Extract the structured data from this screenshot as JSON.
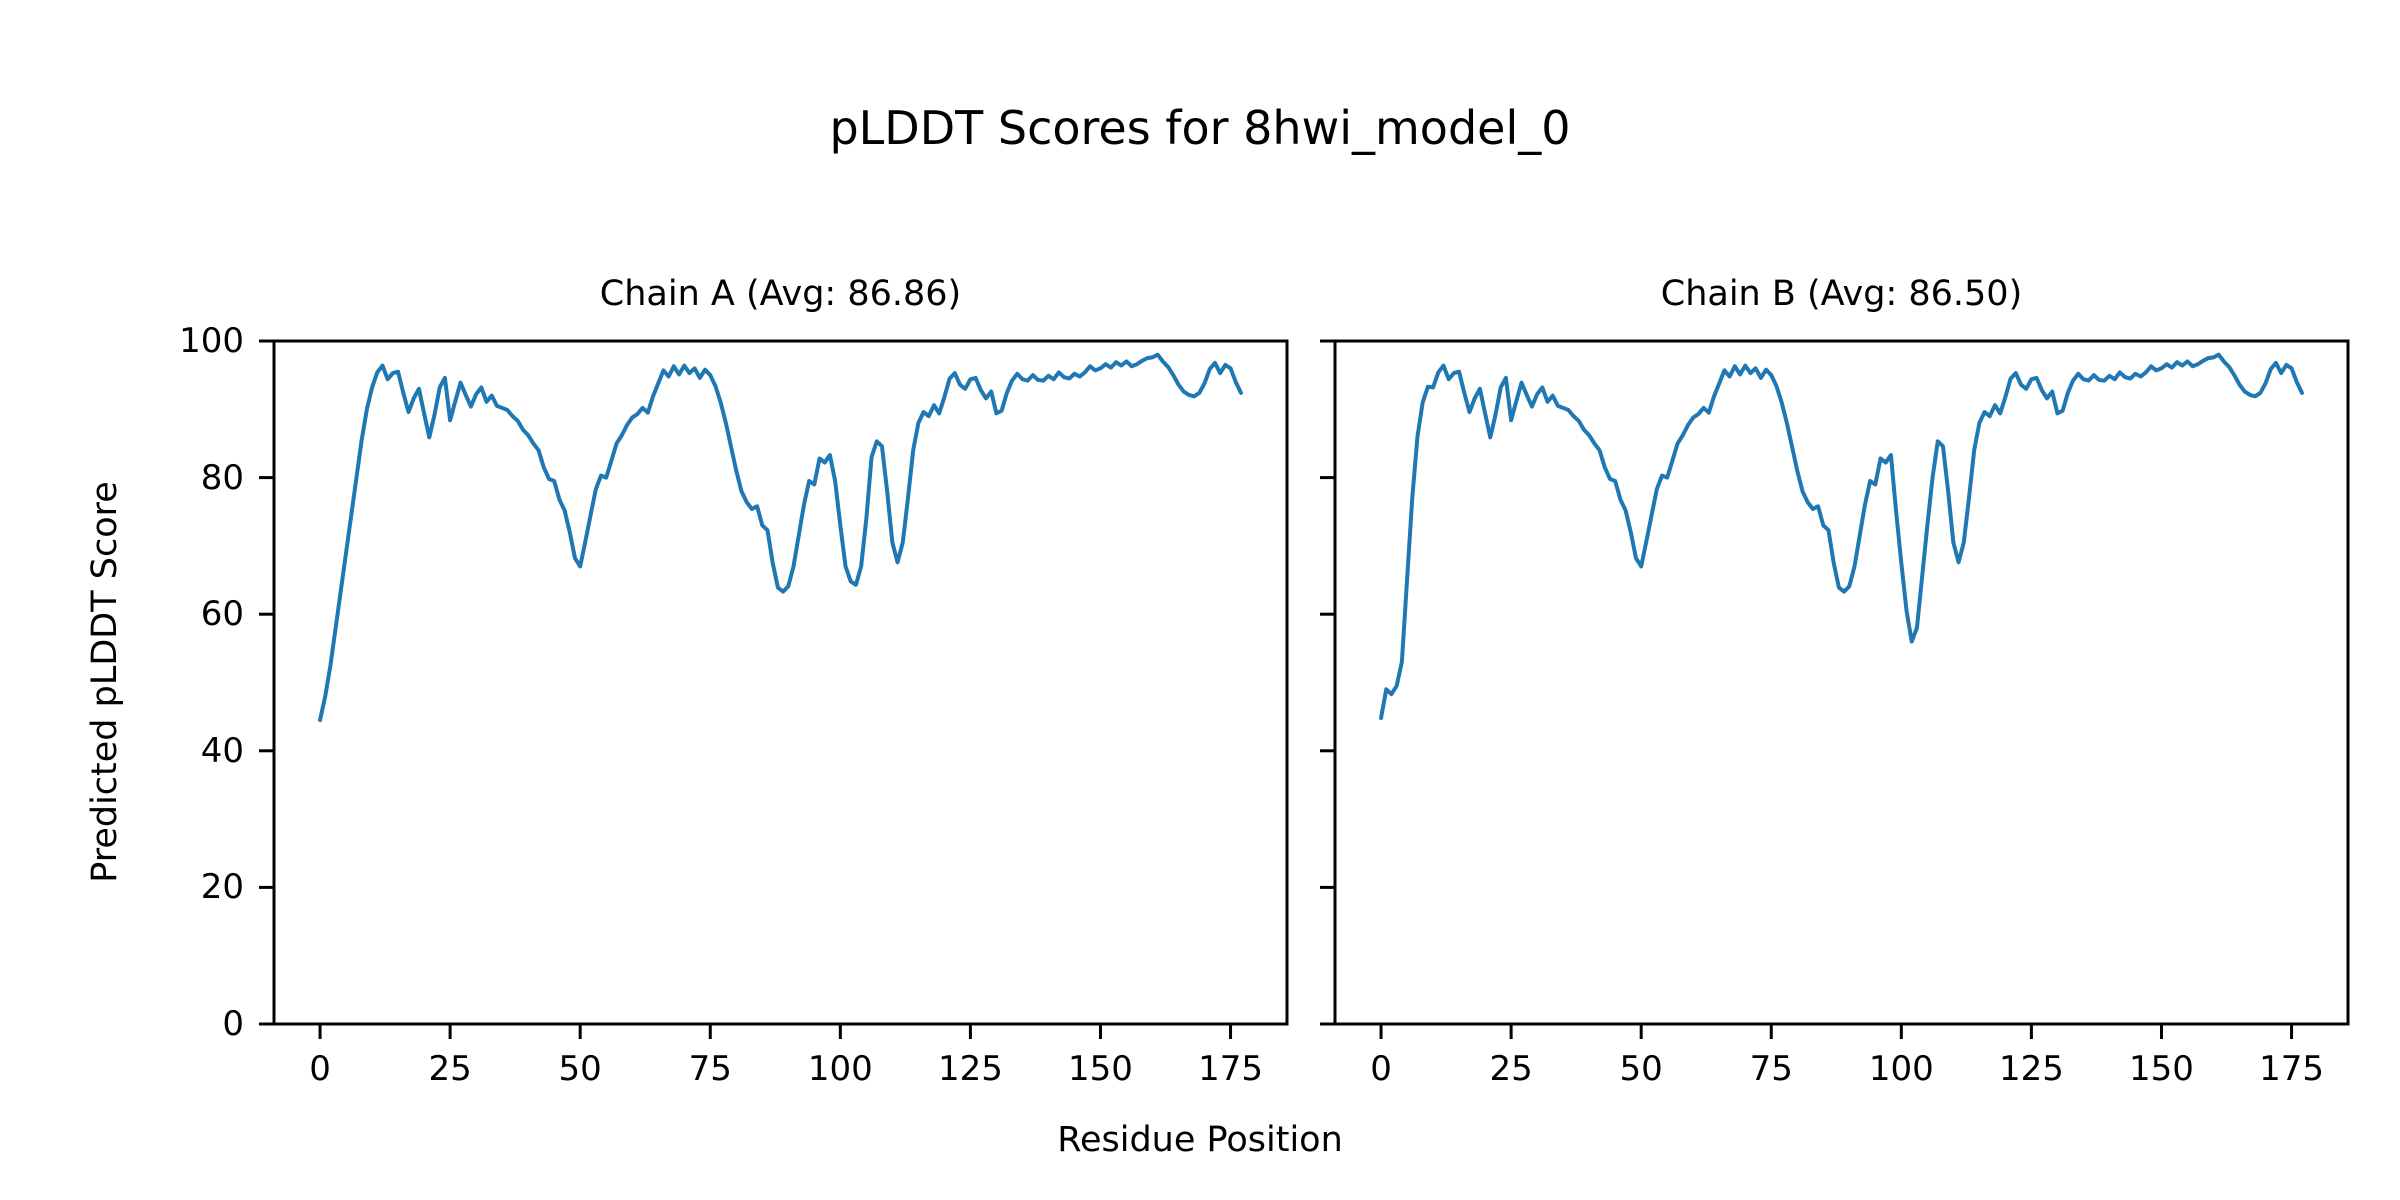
{
  "figure": {
    "suptitle": "pLDDT Scores for 8hwi_model_0",
    "xlabel": "Residue Position",
    "ylabel": "Predicted pLDDT Score",
    "background_color": "#ffffff",
    "text_color": "#000000",
    "spine_color": "#000000"
  },
  "chart_data": [
    {
      "type": "line",
      "title": "Chain A (Avg: 86.86)",
      "chain_id": "A",
      "average_plddt": 86.86,
      "line_color": "#1f77b4",
      "xlim": [
        -8.85,
        185.85
      ],
      "ylim": [
        0,
        100
      ],
      "xticks": [
        0,
        25,
        50,
        75,
        100,
        125,
        150,
        175
      ],
      "yticks": [
        0,
        20,
        40,
        60,
        80,
        100
      ],
      "show_y_tick_labels": true,
      "x_start": 0,
      "values": [
        44.5,
        48.0,
        52.5,
        58.0,
        63.5,
        69.0,
        74.5,
        80.0,
        85.5,
        90.0,
        93.2,
        95.4,
        96.4,
        94.4,
        95.3,
        95.5,
        92.4,
        89.6,
        91.6,
        93.0,
        89.4,
        85.9,
        89.2,
        93.2,
        94.6,
        88.4,
        91.2,
        93.9,
        92.1,
        90.4,
        92.2,
        93.2,
        91.1,
        92.0,
        90.5,
        90.2,
        89.9,
        89.0,
        88.3,
        87.0,
        86.2,
        85.0,
        84.0,
        81.5,
        79.8,
        79.5,
        76.8,
        75.2,
        72.0,
        68.2,
        67.0,
        70.7,
        74.5,
        78.3,
        80.3,
        80.0,
        82.5,
        85.0,
        86.2,
        87.7,
        88.8,
        89.3,
        90.2,
        89.5,
        91.9,
        93.8,
        95.7,
        94.8,
        96.3,
        95.1,
        96.4,
        95.3,
        96.0,
        94.6,
        95.8,
        95.0,
        93.4,
        91.0,
        88.0,
        84.5,
        81.0,
        78.0,
        76.4,
        75.4,
        75.8,
        73.0,
        72.3,
        67.5,
        63.9,
        63.3,
        64.1,
        67.0,
        71.5,
        76.0,
        79.5,
        79.0,
        82.8,
        82.2,
        83.3,
        79.5,
        73.0,
        67.0,
        64.8,
        64.3,
        67.0,
        74.0,
        83.0,
        85.3,
        84.6,
        78.0,
        70.5,
        67.6,
        70.5,
        77.0,
        84.0,
        88.0,
        89.6,
        89.0,
        90.6,
        89.4,
        91.8,
        94.5,
        95.3,
        93.6,
        93.0,
        94.4,
        94.6,
        92.8,
        91.6,
        92.6,
        89.4,
        89.8,
        92.4,
        94.2,
        95.2,
        94.4,
        94.2,
        95.0,
        94.3,
        94.2,
        94.9,
        94.4,
        95.4,
        94.7,
        94.5,
        95.2,
        94.8,
        95.4,
        96.3,
        95.7,
        96.0,
        96.6,
        96.1,
        96.9,
        96.4,
        97.0,
        96.3,
        96.6,
        97.1,
        97.5,
        97.6,
        98.0,
        97.0,
        96.2,
        95.0,
        93.6,
        92.6,
        92.1,
        91.9,
        92.4,
        93.8,
        95.9,
        96.8,
        95.3,
        96.5,
        96.0,
        94.0,
        92.4
      ]
    },
    {
      "type": "line",
      "title": "Chain B (Avg: 86.50)",
      "chain_id": "B",
      "average_plddt": 86.5,
      "line_color": "#1f77b4",
      "xlim": [
        -8.85,
        185.85
      ],
      "ylim": [
        0,
        100
      ],
      "xticks": [
        0,
        25,
        50,
        75,
        100,
        125,
        150,
        175
      ],
      "yticks": [
        0,
        20,
        40,
        60,
        80,
        100
      ],
      "show_y_tick_labels": false,
      "x_start": 0,
      "values": [
        44.8,
        49.0,
        48.3,
        49.5,
        53.0,
        65.0,
        77.0,
        86.0,
        91.0,
        93.3,
        93.2,
        95.4,
        96.4,
        94.4,
        95.3,
        95.5,
        92.4,
        89.6,
        91.6,
        93.0,
        89.4,
        85.9,
        89.2,
        93.2,
        94.6,
        88.4,
        91.2,
        93.9,
        92.1,
        90.4,
        92.2,
        93.2,
        91.1,
        92.0,
        90.5,
        90.2,
        89.9,
        89.0,
        88.3,
        87.0,
        86.2,
        85.0,
        84.0,
        81.5,
        79.8,
        79.5,
        76.8,
        75.2,
        72.0,
        68.2,
        67.0,
        70.7,
        74.5,
        78.3,
        80.3,
        80.0,
        82.5,
        85.0,
        86.2,
        87.7,
        88.8,
        89.3,
        90.2,
        89.5,
        91.9,
        93.8,
        95.7,
        94.8,
        96.3,
        95.1,
        96.4,
        95.3,
        96.0,
        94.6,
        95.8,
        95.0,
        93.4,
        91.0,
        88.0,
        84.5,
        81.0,
        78.0,
        76.4,
        75.4,
        75.8,
        73.0,
        72.3,
        67.5,
        63.9,
        63.3,
        64.1,
        67.0,
        71.5,
        76.0,
        79.5,
        79.0,
        82.8,
        82.2,
        83.3,
        75.0,
        67.5,
        60.5,
        56.0,
        58.0,
        65.5,
        73.0,
        80.0,
        85.3,
        84.6,
        78.0,
        70.5,
        67.6,
        70.5,
        77.0,
        84.0,
        88.0,
        89.6,
        89.0,
        90.6,
        89.4,
        91.8,
        94.5,
        95.3,
        93.6,
        93.0,
        94.4,
        94.6,
        92.8,
        91.6,
        92.6,
        89.4,
        89.8,
        92.4,
        94.2,
        95.2,
        94.4,
        94.2,
        95.0,
        94.3,
        94.2,
        94.9,
        94.4,
        95.4,
        94.7,
        94.5,
        95.2,
        94.8,
        95.4,
        96.3,
        95.7,
        96.0,
        96.6,
        96.1,
        96.9,
        96.4,
        97.0,
        96.3,
        96.6,
        97.1,
        97.5,
        97.6,
        98.0,
        97.0,
        96.2,
        95.0,
        93.6,
        92.6,
        92.1,
        91.9,
        92.4,
        93.8,
        95.9,
        96.8,
        95.3,
        96.5,
        96.0,
        94.0,
        92.4
      ]
    }
  ]
}
